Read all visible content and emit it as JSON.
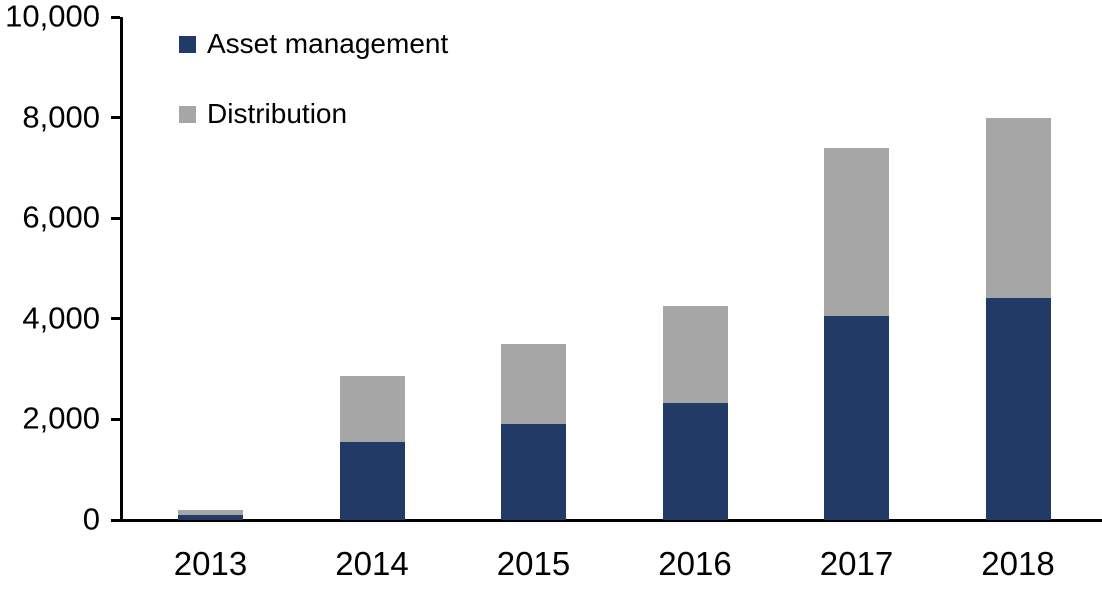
{
  "chart_data": {
    "type": "bar",
    "stacked": true,
    "title": "",
    "xlabel": "",
    "ylabel": "",
    "categories": [
      "2013",
      "2014",
      "2015",
      "2016",
      "2017",
      "2018"
    ],
    "series": [
      {
        "name": "Asset management",
        "color": "#213A66",
        "values": [
          100,
          1550,
          1900,
          2320,
          4050,
          4420
        ]
      },
      {
        "name": "Distribution",
        "color": "#A6A6A6",
        "values": [
          100,
          1320,
          1600,
          1930,
          3350,
          3580
        ]
      }
    ],
    "stack_totals": [
      200,
      2870,
      3500,
      4250,
      7400,
      8000
    ],
    "ylim": [
      0,
      10000
    ],
    "ytick_interval": 2000,
    "ytick_labels": [
      "0",
      "2,000",
      "4,000",
      "6,000",
      "8,000",
      "10,000"
    ],
    "grid": false,
    "legend_position": "top-left-inside",
    "colors": {
      "axis": "#000000",
      "text": "#000000",
      "background": "#ffffff"
    }
  }
}
